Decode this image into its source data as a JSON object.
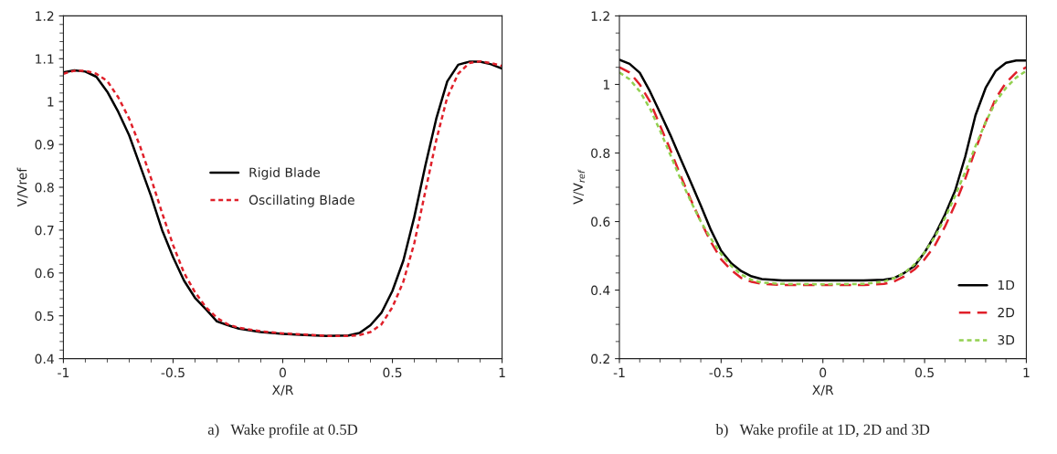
{
  "chart_data": [
    {
      "type": "line",
      "xlabel": "X/R",
      "ylabel": "V/Vref",
      "annotations": [
        "a)   Wake profile at 0.5D"
      ],
      "legend": "center",
      "grid": false,
      "x": [
        -1,
        -0.95,
        -0.9,
        -0.85,
        -0.8,
        -0.75,
        -0.7,
        -0.65,
        -0.6,
        -0.55,
        -0.5,
        -0.45,
        -0.4,
        -0.35,
        -0.3,
        -0.25,
        -0.2,
        -0.1,
        0,
        0.1,
        0.2,
        0.3,
        0.35,
        0.4,
        0.45,
        0.5,
        0.55,
        0.6,
        0.65,
        0.7,
        0.75,
        0.8,
        0.85,
        0.9,
        0.95,
        1
      ],
      "xlim": [
        -1,
        1
      ],
      "ylim": [
        0.4,
        1.2
      ],
      "xticks": [
        -1,
        -0.5,
        0,
        0.5,
        1,
        {
          "value": -0.9,
          "label": null
        },
        {
          "value": -0.8,
          "label": null
        },
        {
          "value": -0.7,
          "label": null
        },
        {
          "value": -0.6,
          "label": null
        },
        {
          "value": -0.4,
          "label": null
        },
        {
          "value": -0.3,
          "label": null
        },
        {
          "value": -0.2,
          "label": null
        },
        {
          "value": -0.1,
          "label": null
        },
        {
          "value": 0.1,
          "label": null
        },
        {
          "value": 0.2,
          "label": null
        },
        {
          "value": 0.3,
          "label": null
        },
        {
          "value": 0.4,
          "label": null
        },
        {
          "value": 0.6,
          "label": null
        },
        {
          "value": 0.7,
          "label": null
        },
        {
          "value": 0.8,
          "label": null
        },
        {
          "value": 0.9,
          "label": null
        }
      ],
      "yticks": [
        0.4,
        0.5,
        0.6,
        0.7,
        0.8,
        0.9,
        1,
        1.1,
        1.2,
        {
          "value": 0.42,
          "label": null
        },
        {
          "value": 0.44,
          "label": null
        },
        {
          "value": 0.46,
          "label": null
        },
        {
          "value": 0.48,
          "label": null
        },
        {
          "value": 0.52,
          "label": null
        },
        {
          "value": 0.54,
          "label": null
        },
        {
          "value": 0.56,
          "label": null
        },
        {
          "value": 0.58,
          "label": null
        },
        {
          "value": 0.62,
          "label": null
        },
        {
          "value": 0.64,
          "label": null
        },
        {
          "value": 0.66,
          "label": null
        },
        {
          "value": 0.68,
          "label": null
        },
        {
          "value": 0.72,
          "label": null
        },
        {
          "value": 0.74,
          "label": null
        },
        {
          "value": 0.76,
          "label": null
        },
        {
          "value": 0.78,
          "label": null
        },
        {
          "value": 0.82,
          "label": null
        },
        {
          "value": 0.84,
          "label": null
        },
        {
          "value": 0.86,
          "label": null
        },
        {
          "value": 0.88,
          "label": null
        },
        {
          "value": 0.92,
          "label": null
        },
        {
          "value": 0.94,
          "label": null
        },
        {
          "value": 0.96,
          "label": null
        },
        {
          "value": 0.98,
          "label": null
        },
        {
          "value": 1.02,
          "label": null
        },
        {
          "value": 1.04,
          "label": null
        },
        {
          "value": 1.06,
          "label": null
        },
        {
          "value": 1.08,
          "label": null
        },
        {
          "value": 1.12,
          "label": null
        },
        {
          "value": 1.14,
          "label": null
        },
        {
          "value": 1.16,
          "label": null
        },
        {
          "value": 1.18,
          "label": null
        }
      ],
      "series": [
        {
          "name": "Rigid Blade",
          "color": "#000000",
          "line_style": "solid",
          "values": [
            1.068,
            1.073,
            1.07,
            1.058,
            1.023,
            0.976,
            0.921,
            0.85,
            0.779,
            0.7,
            0.637,
            0.582,
            0.542,
            0.515,
            0.487,
            0.478,
            0.47,
            0.462,
            0.458,
            0.455,
            0.453,
            0.454,
            0.46,
            0.478,
            0.507,
            0.558,
            0.629,
            0.731,
            0.85,
            0.96,
            1.047,
            1.086,
            1.093,
            1.093,
            1.087,
            1.077
          ]
        },
        {
          "name": "Oscillating Blade",
          "color": "#e0202a",
          "line_style": "dotted",
          "values": [
            1.065,
            1.072,
            1.072,
            1.065,
            1.048,
            1.01,
            0.96,
            0.895,
            0.82,
            0.74,
            0.665,
            0.6,
            0.555,
            0.52,
            0.495,
            0.48,
            0.472,
            0.464,
            0.459,
            0.456,
            0.453,
            0.453,
            0.455,
            0.462,
            0.48,
            0.52,
            0.58,
            0.67,
            0.79,
            0.91,
            1.01,
            1.065,
            1.09,
            1.094,
            1.09,
            1.083
          ]
        }
      ]
    },
    {
      "type": "line",
      "xlabel": "X/R",
      "ylabel": "V/V$_{ref}$",
      "annotations": [
        "b)   Wake profile at 1D, 2D and 3D"
      ],
      "legend": "bottom right",
      "grid": false,
      "x": [
        -1,
        -0.95,
        -0.9,
        -0.85,
        -0.8,
        -0.75,
        -0.7,
        -0.65,
        -0.6,
        -0.55,
        -0.5,
        -0.45,
        -0.4,
        -0.35,
        -0.3,
        -0.2,
        0,
        0.2,
        0.3,
        0.35,
        0.4,
        0.45,
        0.5,
        0.55,
        0.6,
        0.65,
        0.7,
        0.75,
        0.8,
        0.85,
        0.9,
        0.95,
        1
      ],
      "xlim": [
        -1,
        1
      ],
      "ylim": [
        0.2,
        1.2
      ],
      "xticks": [
        -1,
        -0.5,
        0,
        0.5,
        1,
        {
          "value": -0.9,
          "label": null
        },
        {
          "value": -0.8,
          "label": null
        },
        {
          "value": -0.7,
          "label": null
        },
        {
          "value": -0.6,
          "label": null
        },
        {
          "value": -0.4,
          "label": null
        },
        {
          "value": -0.3,
          "label": null
        },
        {
          "value": -0.2,
          "label": null
        },
        {
          "value": -0.1,
          "label": null
        },
        {
          "value": 0.1,
          "label": null
        },
        {
          "value": 0.2,
          "label": null
        },
        {
          "value": 0.3,
          "label": null
        },
        {
          "value": 0.4,
          "label": null
        },
        {
          "value": 0.6,
          "label": null
        },
        {
          "value": 0.7,
          "label": null
        },
        {
          "value": 0.8,
          "label": null
        },
        {
          "value": 0.9,
          "label": null
        }
      ],
      "yticks": [
        0.2,
        0.4,
        0.6,
        0.8,
        1,
        1.2,
        {
          "value": 0.25,
          "label": null
        },
        {
          "value": 0.3,
          "label": null
        },
        {
          "value": 0.35,
          "label": null
        },
        {
          "value": 0.45,
          "label": null
        },
        {
          "value": 0.5,
          "label": null
        },
        {
          "value": 0.55,
          "label": null
        },
        {
          "value": 0.65,
          "label": null
        },
        {
          "value": 0.7,
          "label": null
        },
        {
          "value": 0.75,
          "label": null
        },
        {
          "value": 0.85,
          "label": null
        },
        {
          "value": 0.9,
          "label": null
        },
        {
          "value": 0.95,
          "label": null
        },
        {
          "value": 1.05,
          "label": null
        },
        {
          "value": 1.1,
          "label": null
        },
        {
          "value": 1.15,
          "label": null
        }
      ],
      "series": [
        {
          "name": "1D",
          "color": "#000000",
          "line_style": "solid",
          "values": [
            1.072,
            1.06,
            1.034,
            0.98,
            0.917,
            0.853,
            0.784,
            0.716,
            0.647,
            0.575,
            0.515,
            0.478,
            0.455,
            0.44,
            0.432,
            0.428,
            0.428,
            0.428,
            0.43,
            0.435,
            0.45,
            0.47,
            0.51,
            0.56,
            0.62,
            0.69,
            0.79,
            0.91,
            0.99,
            1.04,
            1.063,
            1.07,
            1.07
          ]
        },
        {
          "name": "2D",
          "color": "#e0202a",
          "line_style": "dashed",
          "values": [
            1.05,
            1.035,
            1.0,
            0.95,
            0.88,
            0.81,
            0.735,
            0.665,
            0.6,
            0.54,
            0.49,
            0.458,
            0.435,
            0.424,
            0.418,
            0.415,
            0.415,
            0.415,
            0.418,
            0.425,
            0.44,
            0.46,
            0.49,
            0.53,
            0.585,
            0.65,
            0.725,
            0.81,
            0.89,
            0.96,
            1.005,
            1.035,
            1.05
          ]
        },
        {
          "name": "3D",
          "color": "#92d050",
          "line_style": "dotted",
          "values": [
            1.035,
            1.015,
            0.98,
            0.93,
            0.865,
            0.795,
            0.725,
            0.66,
            0.6,
            0.55,
            0.505,
            0.47,
            0.445,
            0.43,
            0.422,
            0.418,
            0.417,
            0.418,
            0.425,
            0.435,
            0.45,
            0.475,
            0.51,
            0.555,
            0.61,
            0.675,
            0.745,
            0.82,
            0.89,
            0.95,
            0.99,
            1.02,
            1.04
          ]
        }
      ]
    }
  ]
}
